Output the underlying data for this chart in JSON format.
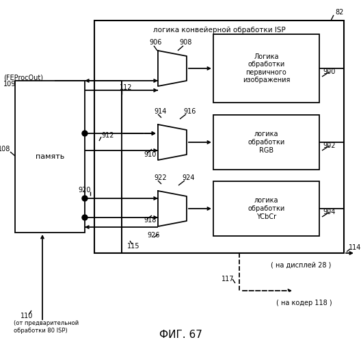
{
  "title": "ФИГ. 67",
  "isp_label": "логика конвейерной обработки ISP",
  "memory_label": "память",
  "block1_text": "Логика\nобработки\nпервичного\nизображения",
  "block2_text": "логика\nобработки\nRGB",
  "block3_text": "логика\nобработки\nYCbCr",
  "label_feprocout": "(FEProcOut)",
  "label_display": "( на дисплей 28 )",
  "label_coder": "( на кодер 118 )",
  "label_preproc": "(от предварительной\nобработки 80 ISP)",
  "ref82": "82",
  "ref108": "108",
  "ref109": "109",
  "ref110": "110",
  "ref112": "112",
  "ref114": "114",
  "ref115": "115",
  "ref117": "117",
  "ref900": "900",
  "ref902": "902",
  "ref904": "904",
  "ref906": "906",
  "ref908": "908",
  "ref910": "910",
  "ref912": "912",
  "ref914": "914",
  "ref916": "916",
  "ref918": "918",
  "ref920": "920",
  "ref922": "922",
  "ref924": "924",
  "ref926": "926",
  "bg_color": "#ffffff"
}
